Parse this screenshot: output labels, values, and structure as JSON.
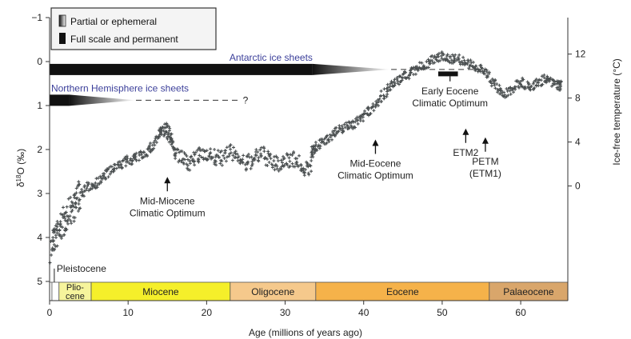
{
  "chart_data": {
    "type": "scatter",
    "xlabel": "Age (millions of years ago)",
    "ylabel_left": "δ18O (‰)",
    "ylabel_left_base": "δ",
    "ylabel_left_sup": "18",
    "ylabel_left_rest": "O (‰)",
    "ylabel_right": "Ice-free temperature (°C)",
    "xlim": [
      0,
      66
    ],
    "ylim": [
      5,
      -1
    ],
    "x_ticks": [
      0,
      10,
      20,
      30,
      40,
      50,
      60
    ],
    "y_ticks": [
      -1,
      0,
      1,
      2,
      3,
      4,
      5
    ],
    "y2_ticks": [
      12,
      8,
      4,
      0
    ],
    "y2_tick_positions_d18O": [
      -0.17,
      0.83,
      1.83,
      2.83
    ],
    "legend": {
      "placement": "top-left",
      "items": [
        {
          "label": "Partial or ephemeral",
          "style": "gradient"
        },
        {
          "label": "Full scale and permanent",
          "style": "solid"
        }
      ]
    },
    "ice_sheets": [
      {
        "label": "Antarctic ice sheets",
        "solid_from": 0,
        "solid_to": 33.5,
        "partial_from": 33.5,
        "partial_to": 43.5,
        "dashed_to": 55,
        "y": 0.18,
        "color": "#3b3f9a"
      },
      {
        "label": "Northern Hemisphere ice sheets",
        "solid_from": 0,
        "solid_to": 2.5,
        "partial_from": 2.5,
        "partial_to": 11,
        "dashed_to": 24,
        "y": 0.88,
        "question": "?",
        "color": "#3b3f9a"
      }
    ],
    "series": [
      {
        "color": "#4a4f50",
        "x": [
          0.2,
          0.5,
          1,
          1.5,
          2,
          2.5,
          3,
          3.5,
          4,
          5,
          6,
          7,
          8,
          9,
          10,
          11,
          12,
          13,
          14,
          14.5,
          15,
          15.5,
          16,
          17,
          18,
          19,
          20,
          21,
          22,
          23,
          24,
          25,
          26,
          27,
          28,
          29,
          30,
          31,
          32,
          33,
          33.5,
          34,
          35,
          36,
          37,
          38,
          39,
          40,
          41,
          42,
          43,
          44,
          45,
          46,
          47,
          48,
          49,
          50,
          51,
          52,
          53,
          54,
          55,
          56,
          57,
          58,
          59,
          60,
          61,
          62,
          63,
          64,
          65
        ],
        "y": [
          4.3,
          4.0,
          3.9,
          3.75,
          3.6,
          3.4,
          3.3,
          3.15,
          3.0,
          2.85,
          2.75,
          2.6,
          2.45,
          2.35,
          2.25,
          2.2,
          2.1,
          1.95,
          1.65,
          1.55,
          1.6,
          1.75,
          2.05,
          2.25,
          2.3,
          2.15,
          2.05,
          2.2,
          2.2,
          2.05,
          2.15,
          2.35,
          2.2,
          2.1,
          2.25,
          2.35,
          2.25,
          2.2,
          2.35,
          2.5,
          2.0,
          1.95,
          1.8,
          1.65,
          1.55,
          1.45,
          1.4,
          1.2,
          1.1,
          0.85,
          0.65,
          0.5,
          0.35,
          0.25,
          0.15,
          0.05,
          -0.05,
          -0.15,
          -0.05,
          -0.1,
          0.05,
          0.1,
          0.15,
          0.35,
          0.6,
          0.75,
          0.6,
          0.45,
          0.6,
          0.5,
          0.4,
          0.5,
          0.55
        ]
      }
    ],
    "annotations": [
      {
        "label": [
          "Mid-Miocene",
          "Climatic Optimum"
        ],
        "x": 15,
        "y": 2.95,
        "arrow": true
      },
      {
        "label": [
          "Mid-Eocene",
          "Climatic Optimum"
        ],
        "x": 41.5,
        "y": 2.1,
        "arrow": true
      },
      {
        "label": [
          "Early Eocene",
          "Climatic Optimum"
        ],
        "x": 51,
        "y": 0.45,
        "bar_from": 49.5,
        "bar_to": 52
      },
      {
        "label": [
          "ETM2"
        ],
        "x": 53,
        "y": 1.85,
        "arrow": true
      },
      {
        "label": [
          "PETM",
          "(ETM1)"
        ],
        "x": 55.5,
        "y": 2.05,
        "arrow": true
      },
      {
        "label": [
          "Pleistocene"
        ],
        "x": 0.9,
        "y": 4.78
      }
    ],
    "epochs": [
      {
        "name": "",
        "from": 0,
        "to": 0.3,
        "color": "#ffffff"
      },
      {
        "name": "",
        "from": 0.3,
        "to": 1.2,
        "color": "#ffffff"
      },
      {
        "name": "Plio-cene",
        "line1": "Plio-",
        "line2": "cene",
        "from": 1.2,
        "to": 5.3,
        "color": "#f6f49c"
      },
      {
        "name": "Miocene",
        "from": 5.3,
        "to": 23,
        "color": "#f5ef2a"
      },
      {
        "name": "Oligocene",
        "from": 23,
        "to": 33.9,
        "color": "#f5c98c"
      },
      {
        "name": "Eocene",
        "from": 33.9,
        "to": 56,
        "color": "#f5b24a"
      },
      {
        "name": "Palaeocene",
        "from": 56,
        "to": 66,
        "color": "#d9a66b"
      }
    ]
  }
}
